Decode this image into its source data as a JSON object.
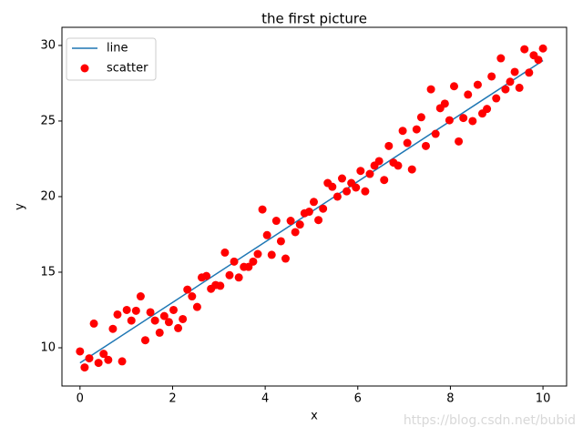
{
  "chart_data": {
    "type": "scatter",
    "title": "the first picture",
    "xlabel": "x",
    "ylabel": "y",
    "xlim": [
      -0.39,
      10.51
    ],
    "ylim": [
      7.47,
      31.2
    ],
    "xticks": [
      0,
      2,
      4,
      6,
      8,
      10
    ],
    "yticks": [
      10,
      15,
      20,
      25,
      30
    ],
    "legend": "upper left",
    "watermark": "https://blog.csdn.net/bubid",
    "series": [
      {
        "name": "line",
        "type": "line",
        "color": "#1f77b4",
        "x": [
          0,
          10
        ],
        "values": [
          9,
          29
        ]
      },
      {
        "name": "scatter",
        "type": "scatter",
        "color": "#ff0000",
        "x": [
          0,
          0.1,
          0.2,
          0.3,
          0.4,
          0.51,
          0.61,
          0.71,
          0.81,
          0.91,
          1.01,
          1.11,
          1.21,
          1.31,
          1.41,
          1.52,
          1.62,
          1.72,
          1.82,
          1.92,
          2.02,
          2.12,
          2.22,
          2.32,
          2.42,
          2.53,
          2.63,
          2.73,
          2.83,
          2.93,
          3.03,
          3.13,
          3.23,
          3.33,
          3.43,
          3.54,
          3.64,
          3.74,
          3.84,
          3.94,
          4.04,
          4.14,
          4.24,
          4.34,
          4.44,
          4.55,
          4.65,
          4.75,
          4.85,
          4.95,
          5.05,
          5.15,
          5.25,
          5.35,
          5.45,
          5.56,
          5.66,
          5.76,
          5.86,
          5.96,
          6.06,
          6.16,
          6.26,
          6.36,
          6.46,
          6.57,
          6.67,
          6.77,
          6.87,
          6.97,
          7.07,
          7.17,
          7.27,
          7.37,
          7.47,
          7.58,
          7.68,
          7.78,
          7.88,
          7.98,
          8.08,
          8.18,
          8.28,
          8.38,
          8.48,
          8.59,
          8.69,
          8.79,
          8.89,
          8.99,
          9.09,
          9.19,
          9.29,
          9.39,
          9.49,
          9.6,
          9.7,
          9.8,
          9.9,
          10
        ],
        "values": [
          9.76,
          8.7,
          9.3,
          11.6,
          9.0,
          9.6,
          9.2,
          11.25,
          12.2,
          9.1,
          12.5,
          11.8,
          12.45,
          13.4,
          10.5,
          12.35,
          11.8,
          11.0,
          12.1,
          11.7,
          12.5,
          11.3,
          11.9,
          13.85,
          13.4,
          12.7,
          14.65,
          14.75,
          13.9,
          14.15,
          14.1,
          16.3,
          14.8,
          15.7,
          14.65,
          15.35,
          15.35,
          15.7,
          16.2,
          19.15,
          17.45,
          16.15,
          18.4,
          17.05,
          15.9,
          18.4,
          17.65,
          18.15,
          18.9,
          19.0,
          19.65,
          18.45,
          19.2,
          20.9,
          20.65,
          20.0,
          21.2,
          20.35,
          20.9,
          20.6,
          21.7,
          20.35,
          21.5,
          22.05,
          22.35,
          21.1,
          23.35,
          22.25,
          22.05,
          24.35,
          23.55,
          21.8,
          24.45,
          25.25,
          23.35,
          27.1,
          24.15,
          25.85,
          26.15,
          25.05,
          27.3,
          23.65,
          25.2,
          26.75,
          25.0,
          27.4,
          25.5,
          25.8,
          27.95,
          26.5,
          29.15,
          27.1,
          27.6,
          28.25,
          27.2,
          29.75,
          28.2,
          29.35,
          29.05,
          29.8
        ]
      }
    ]
  }
}
